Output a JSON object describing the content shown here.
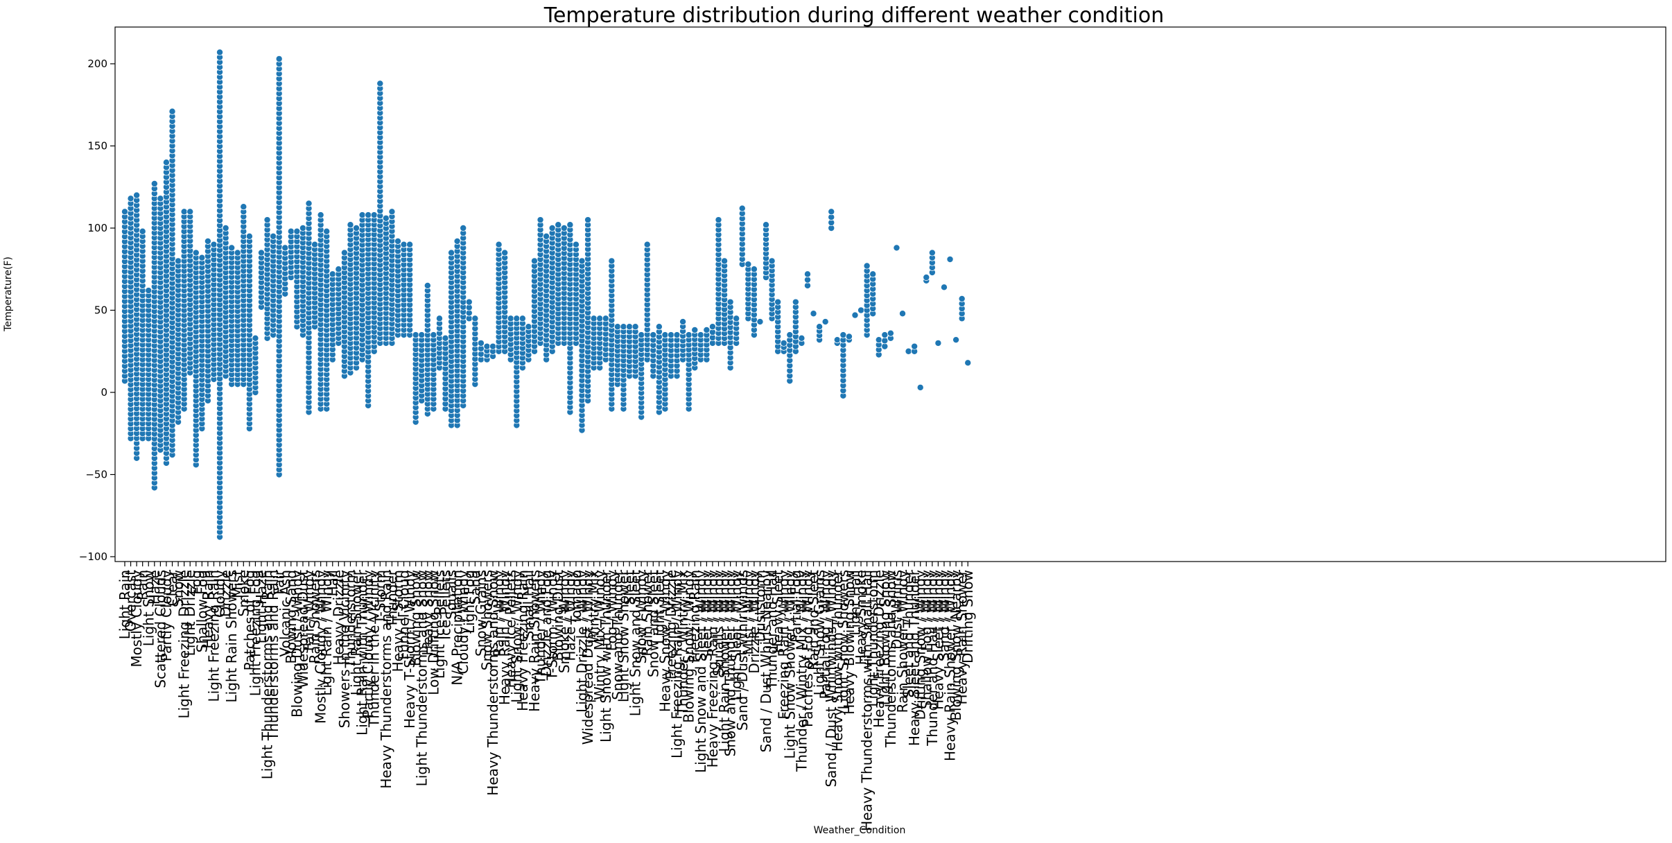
{
  "chart_data": {
    "type": "scatter",
    "title": "Temperature distribution during different weather condition",
    "xlabel": "Weather_Condition",
    "ylabel": "Temperature(F)",
    "ylim": [
      -105,
      220
    ],
    "yticks": [
      -100,
      -50,
      0,
      50,
      100,
      150,
      200
    ],
    "grid": false,
    "legend": "none",
    "marker_color": "#1f77b4",
    "categories": [
      "Light Rain",
      "Overcast",
      "Mostly Cloudy",
      "Rain",
      "Light Snow",
      "Haze",
      "Scattered Clouds",
      "Partly Cloudy",
      "Clear",
      "Snow",
      "Light Freezing Drizzle",
      "Light Drizzle",
      "Fog",
      "Shallow Fog",
      "Heavy Rain",
      "Light Freezing Rain",
      "Cloudy",
      "Drizzle",
      "Light Rain Showers",
      "Mist",
      "Smoke",
      "Patches of Fog",
      "Light Freezing Fog",
      "Light Haze",
      "Light Thunderstorms and Rain",
      "Thunderstorms and Rain",
      "Fair",
      "Volcanic Ash",
      "Blowing Sand",
      "Blowing Dust / Windy",
      "Widespread Dust",
      "Fair / Windy",
      "Rain Showers",
      "Mostly Cloudy / Windy",
      "Light Rain / Windy",
      "Hail",
      "Heavy Drizzle",
      "Showers in the Vicinity",
      "Thunderstorm",
      "Light Rain Shower",
      "Light Rain with Thunder",
      "Partly Cloudy / Windy",
      "Thunder in the Vicinity",
      "T-Storm",
      "Heavy Thunderstorms and Rain",
      "Thunder",
      "Heavy T-Storm",
      "Funnel Cloud",
      "Heavy T-Storm / Windy",
      "Blowing Snow",
      "Light Thunderstorms and Snow",
      "Heavy Snow",
      "Low Drifting Snow",
      "Light Ice Pellets",
      "Ice Pellets",
      "Squalls",
      "N/A Precipitation",
      "Cloudy / Windy",
      "Light Fog",
      "Sand",
      "Snow Grains",
      "Snow Showers",
      "Heavy Thunderstorms and Snow",
      "Rain / Windy",
      "Heavy Rain / Windy",
      "Heavy Ice Pellets",
      "Light Snow / Windy",
      "Heavy Freezing Rain",
      "Small Hail",
      "Heavy Rain Showers",
      "Thunder / Windy",
      "Drizzle and Fog",
      "T-Storm / Windy",
      "Blowing Dust",
      "Smoke / Windy",
      "Haze / Windy",
      "Tornado",
      "Light Drizzle / Windy",
      "Widespread Dust / Windy",
      "Wintry Mix",
      "Wintry Mix / Windy",
      "Light Snow with Thunder",
      "Fog / Windy",
      "Snow and Thunder",
      "Light Snow Shower",
      "Sleet",
      "Light Snow and Sleet",
      "Snow / Windy",
      "Rain Shower",
      "Snow and Sleet",
      "Light Sleet",
      "Heavy Snow / Windy",
      "Freezing Drizzle",
      "Light Freezing Rain / Windy",
      "Thunder / Wintry Mix",
      "Blowing Snow / Windy",
      "Freezing Rain",
      "Light Snow and Sleet / Windy",
      "Sleet / Windy",
      "Heavy Freezing Rain / Windy",
      "Squalls / Windy",
      "Light Rain Shower / Windy",
      "Snow and Thunder / Windy",
      "Light Sleet / Windy",
      "Sand / Dust Whirlwinds",
      "Mist / Windy",
      "Drizzle / Windy",
      "Duststorm",
      "Sand / Dust Whirls Nearby",
      "Thunder and Hail",
      "Heavy Sleet",
      "Freezing Rain / Windy",
      "Light Snow Shower / Windy",
      "Partial Fog",
      "Thunder / Wintry Mix / Windy",
      "Patches of Fog / Windy",
      "Rain and Sleet",
      "Light Snow Grains",
      "Partial Fog / Windy",
      "Sand / Dust Whirlwinds / Windy",
      "Heavy Snow with Thunder",
      "Light Snow Showers",
      "Heavy Blowing Snow",
      "Light Hail",
      "Heavy Smoke",
      "Heavy Thunderstorms with Small Hail",
      "Light Thunderstorm",
      "Heavy Freezing Drizzle",
      "Light Blowing Snow",
      "Thunderstorms and Snow",
      "Dust Whirls",
      "Rain Shower / Windy",
      "Sleet and Thunder",
      "Heavy Sleet and Thunder",
      "Drifting Snow / Windy",
      "Shallow Fog / Windy",
      "Thunder and Hail / Windy",
      "Heavy Sleet / Windy",
      "Sand / Windy",
      "Heavy Rain Shower / Windy",
      "Blowing Snow Nearby",
      "Heavy Rain Shower",
      "Drifting Snow"
    ],
    "ranges": [
      [
        7,
        110
      ],
      [
        -28,
        118
      ],
      [
        -40,
        120
      ],
      [
        -28,
        98
      ],
      [
        -28,
        62
      ],
      [
        -58,
        127
      ],
      [
        -35,
        118
      ],
      [
        -43,
        140
      ],
      [
        -38,
        171
      ],
      [
        -18,
        80
      ],
      [
        -10,
        110
      ],
      [
        12,
        110
      ],
      [
        -44,
        85
      ],
      [
        -22,
        82
      ],
      [
        -5,
        92
      ],
      [
        8,
        90
      ],
      [
        -88,
        207
      ],
      [
        10,
        100
      ],
      [
        5,
        88
      ],
      [
        5,
        85
      ],
      [
        5,
        113
      ],
      [
        -22,
        95
      ],
      [
        0,
        33
      ],
      [
        52,
        85
      ],
      [
        33,
        105
      ],
      [
        35,
        95
      ],
      [
        -50,
        203
      ],
      [
        60,
        88
      ],
      [
        70,
        98
      ],
      [
        40,
        98
      ],
      [
        35,
        100
      ],
      [
        -12,
        115
      ],
      [
        40,
        90
      ],
      [
        -10,
        108
      ],
      [
        -10,
        98
      ],
      [
        20,
        72
      ],
      [
        30,
        75
      ],
      [
        10,
        85
      ],
      [
        12,
        102
      ],
      [
        15,
        100
      ],
      [
        20,
        108
      ],
      [
        -8,
        108
      ],
      [
        25,
        108
      ],
      [
        30,
        188
      ],
      [
        30,
        106
      ],
      [
        30,
        110
      ],
      [
        35,
        92
      ],
      [
        35,
        90
      ],
      [
        35,
        90
      ],
      [
        -18,
        35
      ],
      [
        -5,
        35
      ],
      [
        -13,
        65
      ],
      [
        -10,
        35
      ],
      [
        15,
        45
      ],
      [
        -10,
        33
      ],
      [
        -20,
        85
      ],
      [
        -20,
        92
      ],
      [
        -8,
        100
      ],
      [
        45,
        55
      ],
      [
        5,
        45
      ],
      [
        20,
        30
      ],
      [
        20,
        28
      ],
      [
        22,
        28
      ],
      [
        25,
        90
      ],
      [
        25,
        85
      ],
      [
        20,
        45
      ],
      [
        -20,
        45
      ],
      [
        15,
        45
      ],
      [
        20,
        40
      ],
      [
        25,
        80
      ],
      [
        30,
        105
      ],
      [
        20,
        95
      ],
      [
        25,
        100
      ],
      [
        30,
        102
      ],
      [
        30,
        100
      ],
      [
        -12,
        102
      ],
      [
        30,
        90
      ],
      [
        -23,
        80
      ],
      [
        -5,
        105
      ],
      [
        15,
        45
      ],
      [
        15,
        45
      ],
      [
        20,
        45
      ],
      [
        -10,
        80
      ],
      [
        5,
        40
      ],
      [
        -10,
        40
      ],
      [
        10,
        40
      ],
      [
        10,
        40
      ],
      [
        -15,
        35
      ],
      [
        20,
        90
      ],
      [
        10,
        35
      ],
      [
        -12,
        40
      ],
      [
        -10,
        35
      ],
      [
        10,
        35
      ],
      [
        10,
        35
      ],
      [
        20,
        43
      ],
      [
        -10,
        35
      ],
      [
        15,
        38
      ],
      [
        20,
        35
      ],
      [
        20,
        38
      ],
      [
        30,
        40
      ],
      [
        30,
        105
      ],
      [
        30,
        80
      ],
      [
        15,
        55
      ],
      [
        30,
        45
      ],
      [
        78,
        112
      ],
      [
        45,
        78
      ],
      [
        35,
        75
      ],
      [
        43,
        43
      ],
      [
        70,
        102
      ],
      [
        45,
        80
      ],
      [
        25,
        55
      ],
      [
        25,
        30
      ],
      [
        7,
        35
      ],
      [
        25,
        55
      ],
      [
        30,
        33
      ],
      [
        65,
        72
      ],
      [
        48,
        48
      ],
      [
        32,
        40
      ],
      [
        43,
        43
      ],
      [
        100,
        110
      ],
      [
        30,
        32
      ],
      [
        -2,
        35
      ],
      [
        32,
        34
      ],
      [
        47,
        47
      ],
      [
        50,
        50
      ],
      [
        35,
        77
      ],
      [
        48,
        72
      ],
      [
        23,
        32
      ],
      [
        28,
        35
      ],
      [
        33,
        36
      ],
      [
        88,
        88
      ],
      [
        48,
        48
      ],
      [
        25,
        25
      ],
      [
        25,
        28
      ],
      [
        3,
        3
      ],
      [
        68,
        70
      ],
      [
        73,
        85
      ],
      [
        30,
        30
      ],
      [
        64,
        64
      ],
      [
        81,
        81
      ],
      [
        32,
        32
      ],
      [
        45,
        57
      ],
      [
        18,
        18
      ]
    ]
  }
}
